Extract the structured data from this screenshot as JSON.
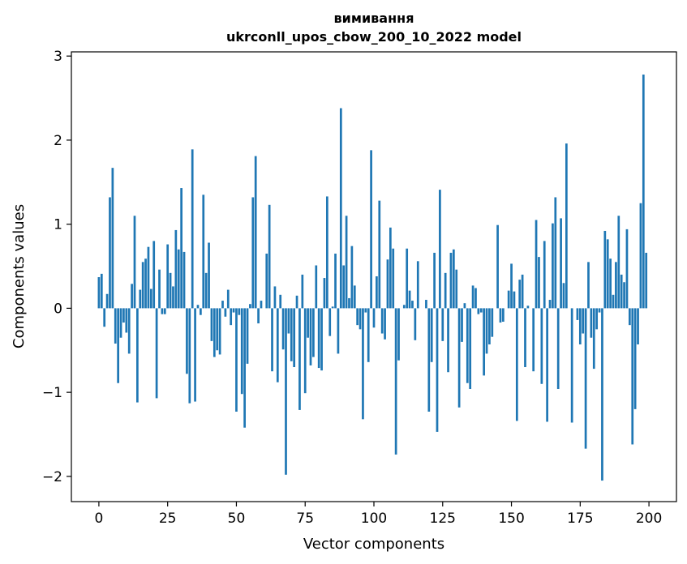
{
  "chart_data": {
    "type": "bar",
    "title": "вимивання\nukrconll_upos_cbow_200_10_2022 model",
    "xlabel": "Vector components",
    "ylabel": "Components values",
    "xlim": [
      -10,
      210
    ],
    "ylim": [
      -2.3,
      3.05
    ],
    "xticks": [
      0,
      25,
      50,
      75,
      100,
      125,
      150,
      175,
      200
    ],
    "xtick_labels": [
      "0",
      "25",
      "50",
      "75",
      "100",
      "125",
      "150",
      "175",
      "200"
    ],
    "yticks": [
      -2,
      -1,
      0,
      1,
      2,
      3
    ],
    "ytick_labels": [
      "−2",
      "−1",
      "0",
      "1",
      "2",
      "3"
    ],
    "grid": false,
    "bar_color": "#1f77b4",
    "values": [
      0.37,
      0.41,
      -0.22,
      0.17,
      1.32,
      1.67,
      -0.42,
      -0.89,
      -0.35,
      -0.17,
      -0.29,
      -0.54,
      0.29,
      1.1,
      -1.12,
      0.22,
      0.55,
      0.59,
      0.73,
      0.23,
      0.8,
      -1.07,
      0.46,
      -0.07,
      -0.07,
      0.76,
      0.42,
      0.26,
      0.93,
      0.7,
      1.43,
      0.67,
      -0.78,
      -1.13,
      1.89,
      -1.11,
      0.04,
      -0.08,
      1.35,
      0.42,
      0.78,
      -0.39,
      -0.58,
      -0.5,
      -0.55,
      0.09,
      -0.1,
      0.22,
      -0.2,
      -0.05,
      -1.23,
      -0.08,
      -1.02,
      -1.42,
      -0.66,
      0.05,
      1.32,
      1.81,
      -0.18,
      0.09,
      0.0,
      0.65,
      1.23,
      -0.75,
      0.26,
      -0.88,
      0.16,
      -0.49,
      -1.98,
      -0.3,
      -0.63,
      -0.7,
      0.15,
      -1.21,
      0.4,
      -1.01,
      -0.35,
      -0.68,
      -0.58,
      0.51,
      -0.71,
      -0.74,
      0.36,
      1.33,
      -0.33,
      0.02,
      0.65,
      -0.54,
      2.38,
      0.51,
      1.1,
      0.12,
      0.74,
      0.27,
      -0.2,
      -0.25,
      -1.32,
      -0.05,
      -0.64,
      1.88,
      -0.23,
      0.38,
      1.28,
      -0.3,
      -0.37,
      0.58,
      0.96,
      0.71,
      -1.74,
      -0.62,
      0.0,
      0.04,
      0.71,
      0.21,
      0.09,
      -0.38,
      0.56,
      0.0,
      0.0,
      0.1,
      -1.23,
      -0.64,
      0.66,
      -1.47,
      1.41,
      -0.39,
      0.42,
      -0.76,
      0.66,
      0.7,
      0.46,
      -1.18,
      -0.4,
      0.06,
      -0.89,
      -0.96,
      0.27,
      0.24,
      -0.07,
      -0.05,
      -0.8,
      -0.54,
      -0.43,
      -0.34,
      0.0,
      0.99,
      -0.17,
      -0.16,
      0.0,
      0.21,
      0.53,
      0.2,
      -1.34,
      0.34,
      0.4,
      -0.7,
      0.03,
      0.0,
      -0.75,
      1.05,
      0.61,
      -0.9,
      0.8,
      -1.35,
      0.1,
      1.01,
      1.32,
      -0.96,
      1.07,
      0.3,
      1.96,
      0.0,
      -1.36,
      0.0,
      -0.14,
      -0.43,
      -0.3,
      -1.67,
      0.55,
      -0.35,
      -0.72,
      -0.25,
      -0.05,
      -2.05,
      0.92,
      0.82,
      0.59,
      0.16,
      0.55,
      1.1,
      0.4,
      0.31,
      0.94,
      -0.2,
      -1.62,
      -1.2,
      -0.43,
      1.25,
      2.78,
      0.66
    ]
  }
}
